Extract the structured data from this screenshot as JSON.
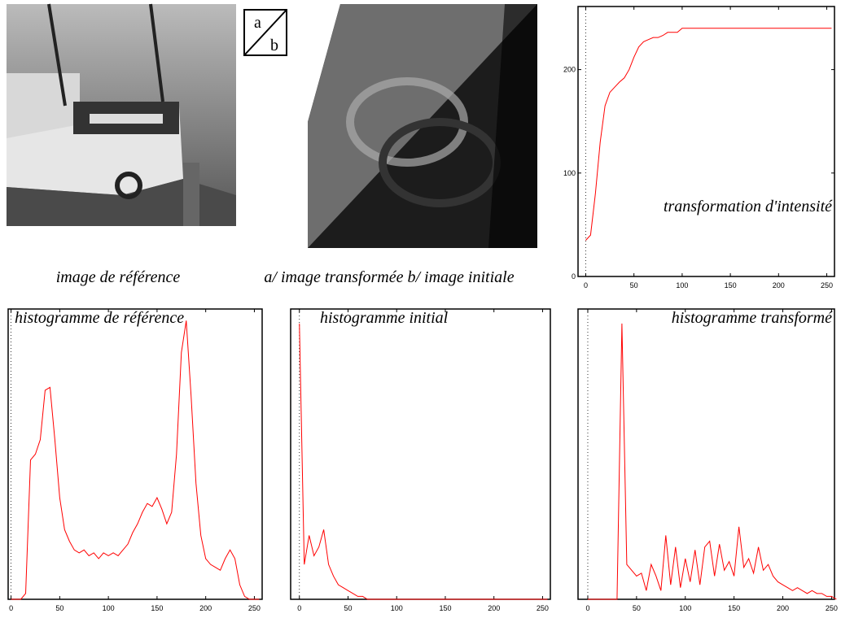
{
  "images": [
    {
      "caption": "image de référence"
    },
    {
      "caption": "a/ image transformée b/ image initiale",
      "legend_top": "a",
      "legend_bottom": "b"
    }
  ],
  "chart_data": [
    {
      "type": "line",
      "title": "transformation d'intensité",
      "color": "#ff0000",
      "x": [
        0,
        5,
        10,
        15,
        20,
        25,
        30,
        35,
        40,
        45,
        50,
        55,
        60,
        65,
        70,
        75,
        80,
        85,
        90,
        95,
        100,
        150,
        200,
        255
      ],
      "values": [
        35,
        40,
        80,
        130,
        165,
        178,
        183,
        188,
        192,
        200,
        212,
        222,
        227,
        229,
        231,
        231,
        233,
        236,
        236,
        236,
        240,
        240,
        240,
        240
      ],
      "xlim": [
        -8,
        258
      ],
      "ylim": [
        0,
        261
      ],
      "xticks": [
        0,
        50,
        100,
        150,
        200,
        250
      ],
      "yticks": [
        0,
        100,
        200
      ]
    },
    {
      "type": "line",
      "title": "histogramme de référence",
      "color": "#ff0000",
      "x": [
        0,
        5,
        10,
        15,
        20,
        25,
        30,
        35,
        40,
        45,
        50,
        55,
        60,
        65,
        70,
        75,
        80,
        85,
        90,
        95,
        100,
        105,
        110,
        115,
        120,
        125,
        130,
        135,
        140,
        145,
        150,
        155,
        160,
        165,
        170,
        175,
        180,
        185,
        190,
        195,
        200,
        205,
        210,
        215,
        220,
        225,
        230,
        235,
        240,
        245,
        250,
        255
      ],
      "values": [
        0,
        0,
        0,
        2,
        48,
        50,
        55,
        72,
        73,
        55,
        35,
        24,
        20,
        17,
        16,
        17,
        15,
        16,
        14,
        16,
        15,
        16,
        15,
        17,
        19,
        23,
        26,
        30,
        33,
        32,
        35,
        31,
        26,
        30,
        50,
        85,
        96,
        70,
        40,
        22,
        14,
        12,
        11,
        10,
        14,
        17,
        14,
        5,
        1,
        0,
        0,
        0
      ],
      "xlim": [
        -3,
        258
      ],
      "ylim": [
        0,
        100
      ],
      "xticks": [
        0,
        50,
        100,
        150,
        200,
        250
      ]
    },
    {
      "type": "line",
      "title": "histogramme initial",
      "color": "#ff0000",
      "x": [
        0,
        5,
        10,
        15,
        20,
        25,
        30,
        35,
        40,
        45,
        50,
        55,
        60,
        65,
        70,
        75,
        80,
        85,
        90,
        95,
        100,
        105,
        110,
        115,
        120,
        125,
        130,
        135,
        140,
        145,
        150,
        155,
        160,
        165,
        170,
        175,
        180,
        185,
        190,
        195,
        200,
        205,
        210,
        215,
        220,
        225,
        230,
        235,
        240,
        245,
        250,
        255
      ],
      "values": [
        95,
        12,
        22,
        15,
        18,
        24,
        12,
        8,
        5,
        4,
        3,
        2,
        1,
        1,
        0,
        0,
        0,
        0,
        0,
        0,
        0,
        0,
        0,
        0,
        0,
        0,
        0,
        0,
        0,
        0,
        0,
        0,
        0,
        0,
        0,
        0,
        0,
        0,
        0,
        0,
        0,
        0,
        0,
        0,
        0,
        0,
        0,
        0,
        0,
        0,
        0,
        0
      ],
      "xlim": [
        -9,
        258
      ],
      "ylim": [
        0,
        100
      ],
      "xticks": [
        0,
        50,
        100,
        150,
        200,
        250
      ]
    },
    {
      "type": "line",
      "title": "histogramme transformé",
      "color": "#ff0000",
      "x": [
        0,
        5,
        10,
        15,
        20,
        25,
        30,
        35,
        40,
        45,
        50,
        55,
        60,
        65,
        70,
        75,
        80,
        85,
        90,
        95,
        100,
        105,
        110,
        115,
        120,
        125,
        130,
        135,
        140,
        145,
        150,
        155,
        160,
        165,
        170,
        175,
        180,
        185,
        190,
        195,
        200,
        205,
        210,
        215,
        220,
        225,
        230,
        235,
        240,
        245,
        250,
        255
      ],
      "values": [
        0,
        0,
        0,
        0,
        0,
        0,
        0,
        95,
        12,
        10,
        8,
        9,
        3,
        12,
        8,
        3,
        22,
        5,
        18,
        4,
        14,
        6,
        17,
        5,
        18,
        20,
        8,
        19,
        10,
        13,
        8,
        25,
        11,
        14,
        9,
        18,
        10,
        12,
        8,
        6,
        5,
        4,
        3,
        4,
        3,
        2,
        3,
        2,
        2,
        1,
        1,
        0
      ],
      "xlim": [
        -10,
        253
      ],
      "ylim": [
        0,
        100
      ],
      "xticks": [
        0,
        50,
        100,
        150,
        200,
        250
      ]
    }
  ]
}
